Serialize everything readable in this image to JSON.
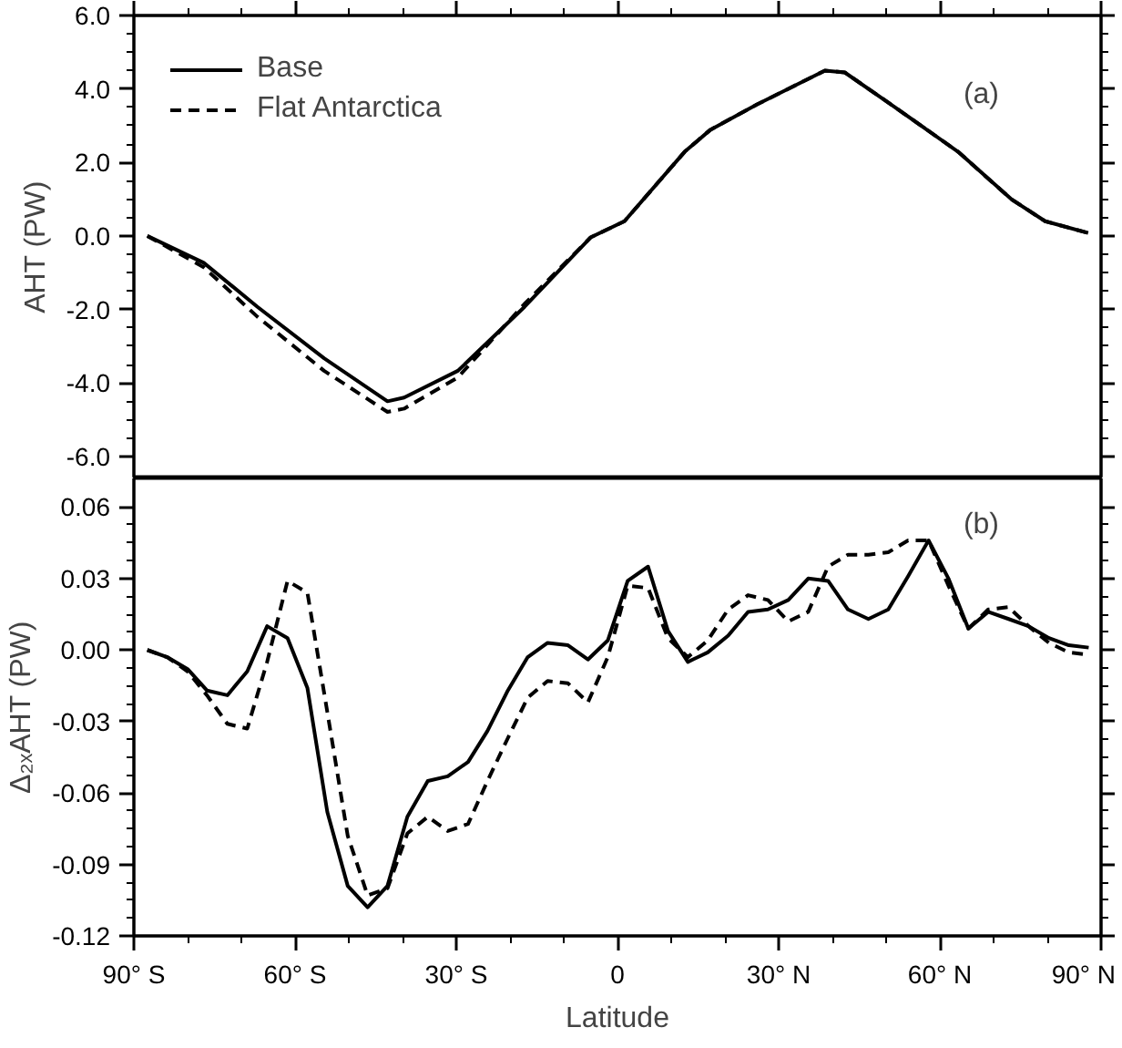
{
  "chart_data": [
    {
      "type": "line",
      "ylabel": "AHT (PW)",
      "annotations": [
        "(a)"
      ],
      "xlim": [
        -90,
        90
      ],
      "ylim": [
        -6.6,
        6.0
      ],
      "xticks": [
        {
          "value": -90,
          "label": null
        },
        {
          "value": -60,
          "label": null
        },
        {
          "value": -30,
          "label": null
        },
        {
          "value": 0,
          "label": null
        },
        {
          "value": 30,
          "label": null
        },
        {
          "value": 60,
          "label": null
        },
        {
          "value": 90,
          "label": null
        }
      ],
      "yticks": [
        {
          "value": -6,
          "label": "-6.0"
        },
        {
          "value": -4,
          "label": "-4.0"
        },
        {
          "value": -2,
          "label": "-2.0"
        },
        {
          "value": 0,
          "label": "0.0"
        },
        {
          "value": 2,
          "label": "2.0"
        },
        {
          "value": 4,
          "label": "4.0"
        },
        {
          "value": 6,
          "label": "6.0"
        }
      ],
      "tick_labels": "y",
      "legend": "top left",
      "grid": false,
      "series": [
        {
          "name": "Base",
          "color": "#000000",
          "line_style": "solid",
          "x": [
            -87.5,
            -77,
            -67,
            -54.6,
            -42.8,
            -39.7,
            -29.7,
            -17.3,
            -5,
            1.3,
            12.5,
            17.3,
            26,
            38.6,
            42.3,
            50.9,
            63.4,
            73.3,
            79.6,
            87.6
          ],
          "values": [
            0,
            -0.73,
            -1.93,
            -3.33,
            -4.5,
            -4.4,
            -3.67,
            -1.93,
            -0.04,
            0.4,
            2.29,
            2.89,
            3.58,
            4.5,
            4.45,
            3.58,
            2.29,
            1.0,
            0.4,
            0.08
          ]
        },
        {
          "name": "Flat Antarctica",
          "color": "#000000",
          "line_style": "dashed",
          "x": [
            -87.5,
            -77,
            -67,
            -54.6,
            -42.8,
            -39.7,
            -29.7,
            -17.3,
            -5,
            1.3,
            12.5,
            17.3,
            26,
            38.6,
            42.3,
            50.9,
            63.4,
            73.3,
            79.6,
            87.6
          ],
          "values": [
            0,
            -0.85,
            -2.2,
            -3.67,
            -4.79,
            -4.7,
            -3.85,
            -1.85,
            -0.04,
            0.4,
            2.29,
            2.89,
            3.58,
            4.5,
            4.45,
            3.58,
            2.29,
            1.0,
            0.4,
            0.08
          ]
        }
      ]
    },
    {
      "type": "line",
      "xlabel": "Latitude",
      "ylabel": "Δ₂ₓAHT (PW)",
      "annotations": [
        "(b)"
      ],
      "xlim": [
        -90,
        90
      ],
      "ylim": [
        -0.12,
        0.072
      ],
      "xticks": [
        {
          "value": -90,
          "label": "90° S"
        },
        {
          "value": -60,
          "label": "60° S"
        },
        {
          "value": -30,
          "label": "30° S"
        },
        {
          "value": 0,
          "label": "0"
        },
        {
          "value": 30,
          "label": "30° N"
        },
        {
          "value": 60,
          "label": "60° N"
        },
        {
          "value": 90,
          "label": "90° N"
        }
      ],
      "yticks": [
        {
          "value": -0.12,
          "label": "-0.12"
        },
        {
          "value": -0.09,
          "label": "-0.09"
        },
        {
          "value": -0.06,
          "label": "-0.06"
        },
        {
          "value": -0.03,
          "label": "-0.03"
        },
        {
          "value": 0,
          "label": "0.00"
        },
        {
          "value": 0.03,
          "label": "0.03"
        },
        {
          "value": 0.06,
          "label": "0.06"
        }
      ],
      "grid": false,
      "series": [
        {
          "color": "#000000",
          "line_style": "solid",
          "x": [
            -87.5,
            -83.8,
            -80,
            -76.4,
            -72.6,
            -68.9,
            -65.2,
            -61.4,
            -57.7,
            -54,
            -50.2,
            -46.5,
            -42.8,
            -39.1,
            -35.3,
            -31.6,
            -27.8,
            -24.2,
            -20.4,
            -16.7,
            -13,
            -9.2,
            -5.5,
            -1.8,
            1.9,
            5.7,
            9.4,
            13.1,
            16.8,
            20.6,
            24.3,
            28,
            31.8,
            35.5,
            39.2,
            42.9,
            46.7,
            50.4,
            54.1,
            57.9,
            61.6,
            65.3,
            69,
            72.8,
            76.5,
            80.3,
            84,
            87.7
          ],
          "values": [
            0.0,
            -0.003,
            -0.008,
            -0.017,
            -0.019,
            -0.009,
            0.01,
            0.005,
            -0.016,
            -0.068,
            -0.099,
            -0.108,
            -0.099,
            -0.07,
            -0.055,
            -0.053,
            -0.047,
            -0.034,
            -0.017,
            -0.003,
            0.003,
            0.002,
            -0.004,
            0.004,
            0.029,
            0.035,
            0.008,
            -0.005,
            -0.001,
            0.006,
            0.016,
            0.017,
            0.021,
            0.03,
            0.029,
            0.017,
            0.013,
            0.017,
            0.031,
            0.046,
            0.03,
            0.009,
            0.016,
            0.013,
            0.01,
            0.005,
            0.002,
            0.001
          ]
        },
        {
          "color": "#000000",
          "line_style": "dashed",
          "x": [
            -87.5,
            -83.8,
            -80,
            -76.4,
            -72.6,
            -68.9,
            -65.2,
            -61.4,
            -57.7,
            -54,
            -50.2,
            -46.5,
            -42.8,
            -39.1,
            -35.3,
            -31.6,
            -27.8,
            -24.2,
            -20.4,
            -16.7,
            -13,
            -9.2,
            -5.5,
            -1.8,
            1.9,
            5.7,
            9.4,
            13.1,
            16.8,
            20.6,
            24.3,
            28,
            31.8,
            35.5,
            39.2,
            42.9,
            46.7,
            50.4,
            54.1,
            57.9,
            61.6,
            65.3,
            69,
            72.8,
            76.5,
            80.3,
            84,
            87.7
          ],
          "values": [
            0.0,
            -0.003,
            -0.009,
            -0.019,
            -0.031,
            -0.033,
            -0.005,
            0.029,
            0.024,
            -0.026,
            -0.078,
            -0.103,
            -0.1,
            -0.077,
            -0.07,
            -0.076,
            -0.073,
            -0.055,
            -0.037,
            -0.02,
            -0.013,
            -0.014,
            -0.022,
            -0.003,
            0.027,
            0.026,
            0.005,
            -0.003,
            0.004,
            0.017,
            0.023,
            0.021,
            0.012,
            0.016,
            0.035,
            0.04,
            0.04,
            0.041,
            0.046,
            0.046,
            0.027,
            0.009,
            0.017,
            0.018,
            0.01,
            0.003,
            -0.001,
            -0.002
          ]
        }
      ]
    }
  ]
}
